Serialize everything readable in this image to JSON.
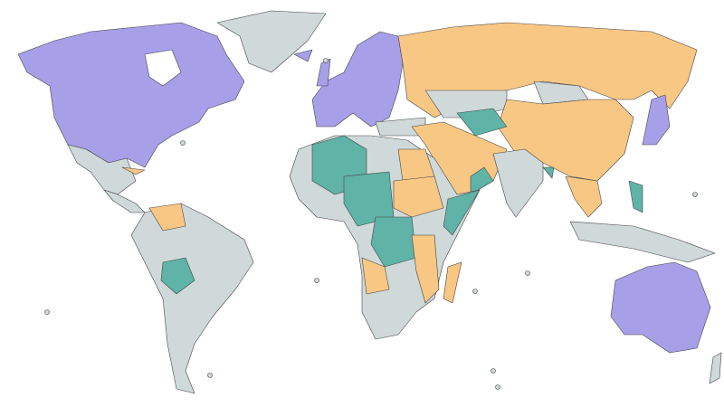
{
  "map": {
    "fills": [
      "#a79fe8",
      "#f9c784",
      "#5fb3a7",
      "#cfd9d9"
    ],
    "border": "#444444"
  }
}
